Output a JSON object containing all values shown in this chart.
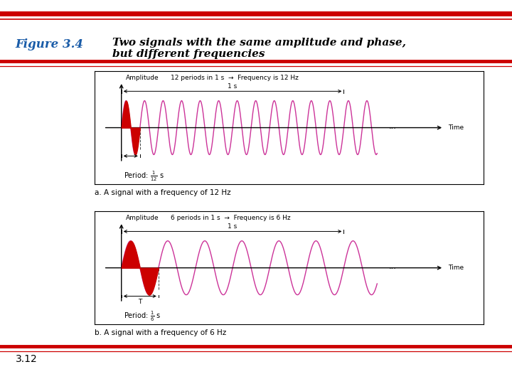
{
  "title_prefix": "Figure 3.4",
  "title_text": "Two signals with the same amplitude and phase,\nbut different frequencies",
  "title_prefix_color": "#1a5ca8",
  "bg_color": "#ffffff",
  "bar_color": "#cc0000",
  "signal_color": "#cc3399",
  "fill_color": "#cc0000",
  "freq1": 12,
  "freq2": 6,
  "amplitude": 1.0,
  "caption1": "a. A signal with a frequency of 12 Hz",
  "caption2": "b. A signal with a frequency of 6 Hz",
  "label1": "12 periods in 1 s",
  "label1b": "Frequency is 12 Hz",
  "label2": "6 periods in 1 s",
  "label2b": "Frequency is 6 Hz",
  "period_label1": "Period: $\\frac{1}{12}$ s",
  "period_label2": "Period: $\\frac{1}{6}$ s",
  "time_label": "Time",
  "amplitude_label": "Amplitude",
  "page_number": "3.12"
}
